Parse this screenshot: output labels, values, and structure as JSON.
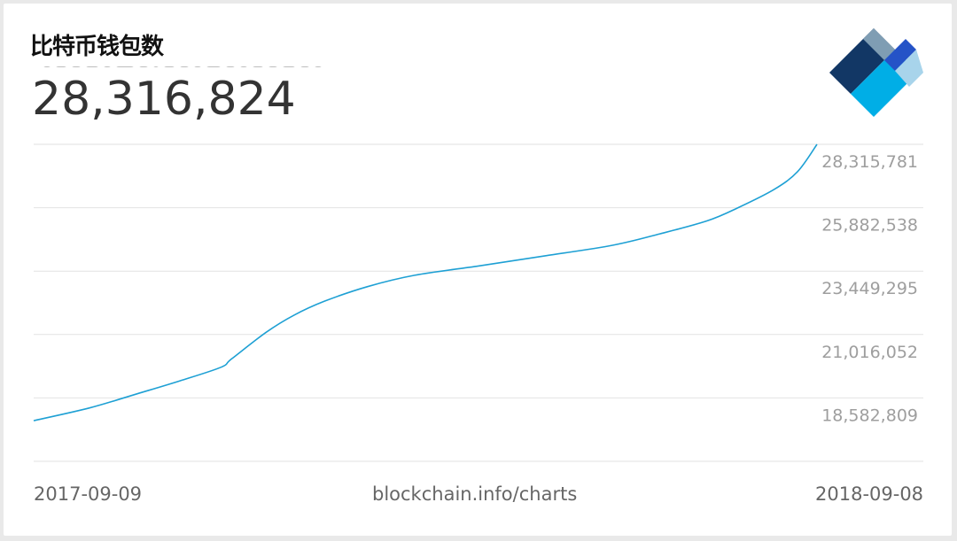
{
  "card": {
    "title": "比特币钱包数",
    "current_value": "28,316,824"
  },
  "footer": {
    "start_date": "2017-09-09",
    "source": "blockchain.info/charts",
    "end_date": "2018-09-08"
  },
  "logo": {
    "icon": "blockchain-diamond-logo",
    "colors": [
      "#123765",
      "#7f9db3",
      "#2553c7",
      "#00aee6",
      "#a8d4eb"
    ]
  },
  "chart_data": {
    "type": "line",
    "series": [
      {
        "color": "#1ea0d4",
        "x": [
          "2017-09-09",
          "2017-10-05",
          "2017-10-27",
          "2017-11-16",
          "2017-12-05",
          "2017-12-10",
          "2017-12-26",
          "2018-01-08",
          "2018-01-22",
          "2018-02-11",
          "2018-03-05",
          "2018-04-04",
          "2018-05-05",
          "2018-06-05",
          "2018-06-27",
          "2018-07-19",
          "2018-08-02",
          "2018-08-19",
          "2018-08-30",
          "2018-09-08"
        ],
        "values": [
          17710000,
          18200000,
          18740000,
          19240000,
          19760000,
          20080000,
          21100000,
          21760000,
          22290000,
          22850000,
          23290000,
          23650000,
          24040000,
          24440000,
          24880000,
          25380000,
          25870000,
          26580000,
          27270000,
          28316824
        ]
      }
    ],
    "yticks": [
      "18,582,809",
      "21,016,052",
      "23,449,295",
      "25,882,538",
      "28,315,781"
    ],
    "ytick_values": [
      18582809,
      21016052,
      23449295,
      25882538,
      28315781
    ],
    "ylim": [
      16149566,
      28315781
    ],
    "xlim": [
      "2017-09-09",
      "2018-09-08"
    ],
    "grid": true
  }
}
